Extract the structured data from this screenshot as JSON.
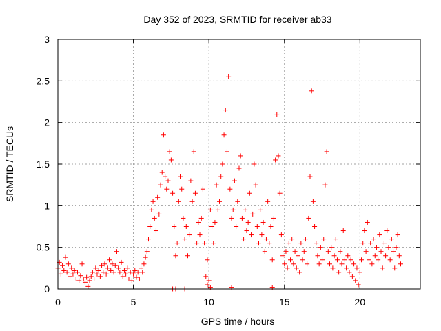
{
  "chart_data": {
    "type": "scatter",
    "title": "Day 352 of 2023, SRMTID for receiver ab33",
    "xlabel": "GPS time / hours",
    "ylabel": "SRMTID / TECUs",
    "xlim": [
      0,
      24
    ],
    "ylim": [
      0,
      3
    ],
    "xticks": [
      0,
      5,
      10,
      15,
      20
    ],
    "yticks": [
      0,
      0.5,
      1,
      1.5,
      2,
      2.5,
      3
    ],
    "xtick_labels": [
      "0",
      "5",
      "10",
      "15",
      "20"
    ],
    "ytick_labels": [
      "0",
      "0.5",
      "1",
      "1.5",
      "2",
      "2.5",
      "3"
    ],
    "grid": true,
    "marker": "+",
    "color": "#ff0000",
    "series": [
      {
        "name": "SRMTID",
        "points": [
          [
            0.0,
            0.25
          ],
          [
            0.1,
            0.32
          ],
          [
            0.2,
            0.18
          ],
          [
            0.3,
            0.28
          ],
          [
            0.4,
            0.22
          ],
          [
            0.5,
            0.38
          ],
          [
            0.6,
            0.2
          ],
          [
            0.7,
            0.3
          ],
          [
            0.8,
            0.15
          ],
          [
            0.9,
            0.25
          ],
          [
            1.0,
            0.18
          ],
          [
            1.1,
            0.22
          ],
          [
            1.2,
            0.12
          ],
          [
            1.3,
            0.2
          ],
          [
            1.4,
            0.1
          ],
          [
            1.5,
            0.16
          ],
          [
            1.6,
            0.3
          ],
          [
            1.7,
            0.12
          ],
          [
            1.8,
            0.08
          ],
          [
            1.9,
            0.14
          ],
          [
            2.0,
            0.03
          ],
          [
            2.1,
            0.1
          ],
          [
            2.2,
            0.15
          ],
          [
            2.3,
            0.2
          ],
          [
            2.4,
            0.12
          ],
          [
            2.5,
            0.25
          ],
          [
            2.6,
            0.18
          ],
          [
            2.7,
            0.22
          ],
          [
            2.8,
            0.15
          ],
          [
            2.9,
            0.28
          ],
          [
            3.0,
            0.2
          ],
          [
            3.1,
            0.3
          ],
          [
            3.2,
            0.18
          ],
          [
            3.3,
            0.25
          ],
          [
            3.4,
            0.35
          ],
          [
            3.5,
            0.22
          ],
          [
            3.6,
            0.3
          ],
          [
            3.7,
            0.2
          ],
          [
            3.8,
            0.28
          ],
          [
            3.9,
            0.45
          ],
          [
            4.0,
            0.25
          ],
          [
            4.1,
            0.2
          ],
          [
            4.2,
            0.32
          ],
          [
            4.3,
            0.15
          ],
          [
            4.4,
            0.22
          ],
          [
            4.5,
            0.18
          ],
          [
            4.6,
            0.25
          ],
          [
            4.7,
            0.12
          ],
          [
            4.8,
            0.2
          ],
          [
            4.9,
            0.1
          ],
          [
            5.0,
            0.18
          ],
          [
            5.1,
            0.22
          ],
          [
            5.2,
            0.14
          ],
          [
            5.3,
            0.2
          ],
          [
            5.4,
            0.12
          ],
          [
            5.5,
            0.25
          ],
          [
            5.6,
            0.2
          ],
          [
            5.7,
            0.3
          ],
          [
            5.8,
            0.38
          ],
          [
            5.9,
            0.45
          ],
          [
            6.0,
            0.6
          ],
          [
            6.1,
            0.75
          ],
          [
            6.2,
            0.95
          ],
          [
            6.3,
            1.05
          ],
          [
            6.4,
            0.85
          ],
          [
            6.5,
            0.7
          ],
          [
            6.6,
            1.1
          ],
          [
            6.7,
            0.9
          ],
          [
            6.8,
            1.25
          ],
          [
            6.9,
            1.4
          ],
          [
            7.0,
            1.85
          ],
          [
            7.1,
            1.35
          ],
          [
            7.2,
            1.2
          ],
          [
            7.3,
            1.3
          ],
          [
            7.4,
            1.65
          ],
          [
            7.5,
            1.55
          ],
          [
            7.6,
            1.15
          ],
          [
            7.7,
            0.75
          ],
          [
            7.8,
            0.4
          ],
          [
            7.9,
            0.55
          ],
          [
            8.0,
            1.05
          ],
          [
            8.1,
            1.35
          ],
          [
            8.2,
            1.2
          ],
          [
            8.3,
            0.85
          ],
          [
            8.4,
            0.6
          ],
          [
            8.5,
            0.75
          ],
          [
            8.6,
            0.4
          ],
          [
            8.7,
            0.65
          ],
          [
            8.8,
            1.3
          ],
          [
            8.9,
            1.05
          ],
          [
            9.0,
            1.65
          ],
          [
            9.1,
            1.15
          ],
          [
            9.2,
            0.55
          ],
          [
            9.3,
            0.8
          ],
          [
            9.4,
            0.65
          ],
          [
            9.5,
            0.85
          ],
          [
            9.6,
            1.2
          ],
          [
            9.7,
            0.55
          ],
          [
            9.8,
            0.15
          ],
          [
            9.9,
            0.35
          ],
          [
            10.0,
            0.1
          ],
          [
            10.1,
            0.95
          ],
          [
            10.2,
            0.75
          ],
          [
            10.3,
            0.55
          ],
          [
            10.4,
            0.8
          ],
          [
            10.5,
            1.25
          ],
          [
            10.6,
            0.95
          ],
          [
            10.7,
            1.05
          ],
          [
            10.8,
            1.35
          ],
          [
            10.9,
            1.5
          ],
          [
            11.0,
            1.85
          ],
          [
            11.1,
            2.15
          ],
          [
            11.2,
            1.65
          ],
          [
            11.3,
            2.55
          ],
          [
            11.4,
            1.2
          ],
          [
            11.5,
            0.85
          ],
          [
            11.6,
            0.95
          ],
          [
            11.7,
            1.3
          ],
          [
            11.8,
            0.75
          ],
          [
            11.9,
            1.05
          ],
          [
            12.0,
            1.45
          ],
          [
            12.1,
            1.6
          ],
          [
            12.2,
            0.85
          ],
          [
            12.3,
            0.6
          ],
          [
            12.4,
            0.95
          ],
          [
            12.5,
            0.7
          ],
          [
            12.6,
            0.8
          ],
          [
            12.7,
            1.15
          ],
          [
            12.8,
            0.65
          ],
          [
            12.9,
            0.9
          ],
          [
            13.0,
            1.5
          ],
          [
            13.1,
            1.25
          ],
          [
            13.2,
            0.75
          ],
          [
            13.3,
            0.55
          ],
          [
            13.4,
            0.95
          ],
          [
            13.5,
            0.65
          ],
          [
            13.6,
            0.8
          ],
          [
            13.7,
            0.45
          ],
          [
            13.8,
            0.6
          ],
          [
            13.9,
            1.05
          ],
          [
            14.0,
            0.55
          ],
          [
            14.1,
            0.75
          ],
          [
            14.2,
            0.35
          ],
          [
            14.3,
            0.85
          ],
          [
            14.4,
            1.55
          ],
          [
            14.5,
            2.1
          ],
          [
            14.6,
            1.6
          ],
          [
            14.7,
            1.15
          ],
          [
            14.8,
            0.65
          ],
          [
            14.9,
            0.4
          ],
          [
            15.0,
            0.3
          ],
          [
            15.1,
            0.45
          ],
          [
            15.2,
            0.25
          ],
          [
            15.3,
            0.55
          ],
          [
            15.4,
            0.35
          ],
          [
            15.5,
            0.6
          ],
          [
            15.6,
            0.3
          ],
          [
            15.7,
            0.45
          ],
          [
            15.8,
            0.25
          ],
          [
            15.9,
            0.4
          ],
          [
            16.0,
            0.2
          ],
          [
            16.1,
            0.55
          ],
          [
            16.2,
            0.35
          ],
          [
            16.3,
            0.45
          ],
          [
            16.4,
            0.6
          ],
          [
            16.5,
            0.3
          ],
          [
            16.6,
            0.85
          ],
          [
            16.7,
            1.35
          ],
          [
            16.8,
            2.38
          ],
          [
            16.9,
            1.05
          ],
          [
            17.0,
            0.75
          ],
          [
            17.1,
            0.55
          ],
          [
            17.2,
            0.4
          ],
          [
            17.3,
            0.3
          ],
          [
            17.4,
            0.5
          ],
          [
            17.5,
            0.35
          ],
          [
            17.6,
            0.6
          ],
          [
            17.7,
            1.25
          ],
          [
            17.8,
            1.65
          ],
          [
            17.9,
            0.45
          ],
          [
            18.0,
            0.3
          ],
          [
            18.1,
            0.5
          ],
          [
            18.2,
            0.25
          ],
          [
            18.3,
            0.4
          ],
          [
            18.4,
            0.6
          ],
          [
            18.5,
            0.35
          ],
          [
            18.6,
            0.2
          ],
          [
            18.7,
            0.45
          ],
          [
            18.8,
            0.3
          ],
          [
            18.9,
            0.7
          ],
          [
            19.0,
            0.35
          ],
          [
            19.1,
            0.25
          ],
          [
            19.2,
            0.4
          ],
          [
            19.3,
            0.2
          ],
          [
            19.4,
            0.35
          ],
          [
            19.5,
            0.15
          ],
          [
            19.6,
            0.3
          ],
          [
            19.7,
            0.1
          ],
          [
            19.8,
            0.25
          ],
          [
            19.9,
            0.05
          ],
          [
            20.0,
            0.2
          ],
          [
            20.1,
            0.35
          ],
          [
            20.2,
            0.55
          ],
          [
            20.3,
            0.7
          ],
          [
            20.4,
            0.45
          ],
          [
            20.5,
            0.8
          ],
          [
            20.6,
            0.35
          ],
          [
            20.7,
            0.55
          ],
          [
            20.8,
            0.3
          ],
          [
            20.9,
            0.6
          ],
          [
            21.0,
            0.4
          ],
          [
            21.1,
            0.5
          ],
          [
            21.2,
            0.35
          ],
          [
            21.3,
            0.65
          ],
          [
            21.4,
            0.45
          ],
          [
            21.5,
            0.25
          ],
          [
            21.6,
            0.55
          ],
          [
            21.7,
            0.4
          ],
          [
            21.8,
            0.7
          ],
          [
            21.9,
            0.5
          ],
          [
            22.0,
            0.35
          ],
          [
            22.1,
            0.6
          ],
          [
            22.2,
            0.45
          ],
          [
            22.3,
            0.25
          ],
          [
            22.4,
            0.5
          ],
          [
            22.5,
            0.65
          ],
          [
            22.6,
            0.4
          ],
          [
            22.7,
            0.3
          ],
          [
            7.6,
            0.0
          ],
          [
            8.4,
            0.0
          ],
          [
            7.8,
            0.0
          ],
          [
            14.2,
            0.02
          ],
          [
            10.1,
            0.02
          ],
          [
            9.9,
            0.05
          ],
          [
            11.5,
            0.02
          ]
        ]
      }
    ]
  }
}
